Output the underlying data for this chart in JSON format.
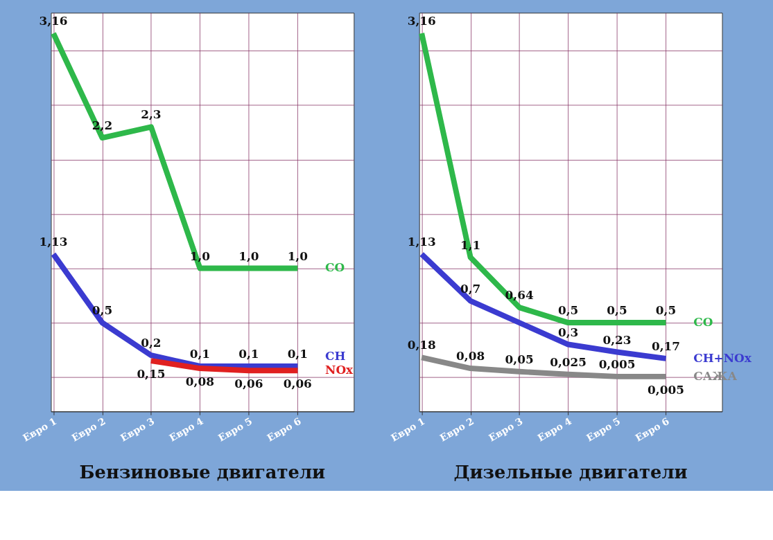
{
  "chart_data": [
    {
      "type": "line",
      "title": "Бензиновые двигатели",
      "grid": true,
      "data_labels": true,
      "tick_labels": "x",
      "categories": [
        "Евро 1",
        "Евро 2",
        "Евро 3",
        "Евро 4",
        "Евро 5",
        "Евро 6"
      ],
      "series": [
        {
          "name": "CO",
          "color": "#2eb84a",
          "values": [
            3.16,
            2.2,
            2.3,
            1.0,
            1.0,
            1.0
          ],
          "value_labels": [
            "3,16",
            "2,2",
            "2,3",
            "1,0",
            "1,0",
            "1,0"
          ]
        },
        {
          "name": "CH",
          "color": "#3b3bd0",
          "values": [
            1.13,
            0.5,
            0.2,
            0.1,
            0.1,
            0.1
          ],
          "value_labels": [
            "1,13",
            "0,5",
            "0,2",
            "0,1",
            "0,1",
            "0,1"
          ]
        },
        {
          "name": "NOx",
          "color": "#e02020",
          "values": [
            null,
            null,
            0.15,
            0.08,
            0.06,
            0.06
          ],
          "value_labels": [
            null,
            null,
            "0,15",
            "0,08",
            "0,06",
            "0,06"
          ]
        }
      ]
    },
    {
      "type": "line",
      "title": "Дизельные двигатели",
      "grid": true,
      "data_labels": true,
      "tick_labels": "x",
      "categories": [
        "Евро 1",
        "Евро 2",
        "Евро 3",
        "Евро 4",
        "Евро 5",
        "Евро 6"
      ],
      "series": [
        {
          "name": "CO",
          "color": "#2eb84a",
          "values": [
            3.16,
            1.1,
            0.64,
            0.5,
            0.5,
            0.5
          ],
          "value_labels": [
            "3,16",
            "1,1",
            "0,64",
            "0,5",
            "0,5",
            "0,5"
          ]
        },
        {
          "name": "CH+NOx",
          "color": "#3b3bd0",
          "values": [
            1.13,
            0.7,
            null,
            0.3,
            0.23,
            0.17
          ],
          "value_labels": [
            "1,13",
            "0,7",
            null,
            "0,3",
            "0,23",
            "0,17"
          ]
        },
        {
          "name": "САЖА",
          "color": "#888888",
          "values": [
            0.18,
            0.08,
            0.05,
            0.025,
            0.005,
            0.005
          ],
          "value_labels": [
            "0,18",
            "0,08",
            "0,05",
            "0,025",
            "0,005",
            "0,005"
          ]
        }
      ]
    }
  ]
}
